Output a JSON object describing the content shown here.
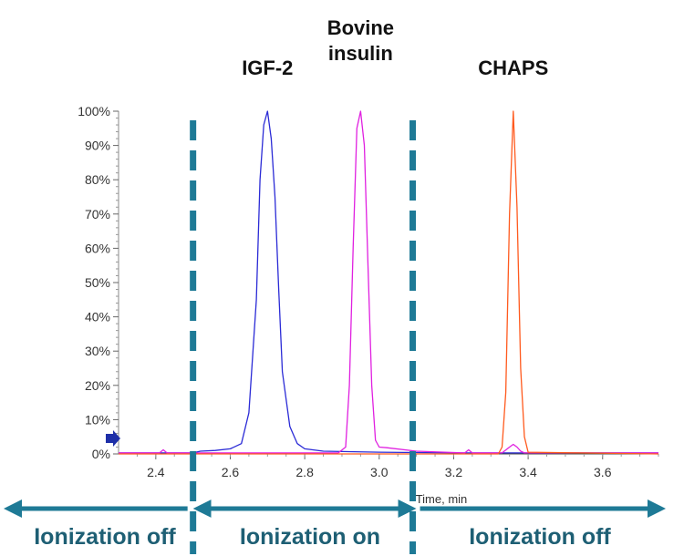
{
  "chart_data": {
    "type": "line",
    "title": "",
    "xlabel": "Time, min",
    "ylabel": "",
    "xlim": [
      2.3,
      3.75
    ],
    "ylim": [
      0,
      100
    ],
    "x_ticks": [
      "2.4",
      "2.6",
      "2.8",
      "3.0",
      "3.2",
      "3.4",
      "3.6"
    ],
    "x_tick_values": [
      2.4,
      2.6,
      2.8,
      3.0,
      3.2,
      3.4,
      3.6
    ],
    "y_ticks": [
      "0%",
      "10%",
      "20%",
      "30%",
      "40%",
      "50%",
      "60%",
      "70%",
      "80%",
      "90%",
      "100%"
    ],
    "y_tick_values": [
      0,
      10,
      20,
      30,
      40,
      50,
      60,
      70,
      80,
      90,
      100
    ],
    "grid": false,
    "peak_labels": [
      {
        "text": "IGF-2",
        "x": 2.7
      },
      {
        "text": "Bovine insulin",
        "lines": [
          "Bovine",
          "insulin"
        ],
        "x": 2.95
      },
      {
        "text": "CHAPS",
        "x": 3.36
      }
    ],
    "divider_times": [
      2.5,
      3.09
    ],
    "regions": [
      {
        "label": "Ionization off",
        "from": 2.3,
        "to": 2.5
      },
      {
        "label": "Ionization on",
        "from": 2.5,
        "to": 3.09
      },
      {
        "label": "Ionization off",
        "from": 3.09,
        "to": 3.75
      }
    ],
    "series": [
      {
        "color": "#2b2bd6",
        "x": [
          2.3,
          2.5,
          2.52,
          2.56,
          2.6,
          2.63,
          2.65,
          2.67,
          2.68,
          2.69,
          2.7,
          2.71,
          2.72,
          2.73,
          2.74,
          2.76,
          2.78,
          2.8,
          2.85,
          3.0,
          3.2,
          3.75
        ],
        "y": [
          0.3,
          0.3,
          0.8,
          1.0,
          1.5,
          3,
          12,
          45,
          80,
          96,
          100,
          92,
          75,
          48,
          24,
          8,
          3,
          1.5,
          0.8,
          0.5,
          0.3,
          0.3
        ]
      },
      {
        "color": "#e020e0",
        "x": [
          2.3,
          2.41,
          2.42,
          2.43,
          2.5,
          2.89,
          2.91,
          2.92,
          2.93,
          2.94,
          2.95,
          2.96,
          2.97,
          2.98,
          2.99,
          3.0,
          3.02,
          3.1,
          3.23,
          3.24,
          3.25,
          3.33,
          3.35,
          3.36,
          3.37,
          3.38,
          3.39,
          3.75
        ],
        "y": [
          0.3,
          0.3,
          1.2,
          0.3,
          0.3,
          0.3,
          2,
          20,
          60,
          95,
          100,
          90,
          55,
          20,
          4,
          2,
          1.8,
          0.8,
          0.3,
          1.2,
          0.3,
          0.3,
          2,
          2.8,
          2,
          0.8,
          0.3,
          0.3
        ]
      },
      {
        "color": "#ff5a1e",
        "x": [
          2.3,
          3.32,
          3.33,
          3.34,
          3.35,
          3.36,
          3.37,
          3.38,
          3.39,
          3.4,
          3.75
        ],
        "y": [
          0,
          0,
          2,
          18,
          70,
          100,
          72,
          25,
          5,
          0.5,
          0
        ]
      }
    ]
  }
}
